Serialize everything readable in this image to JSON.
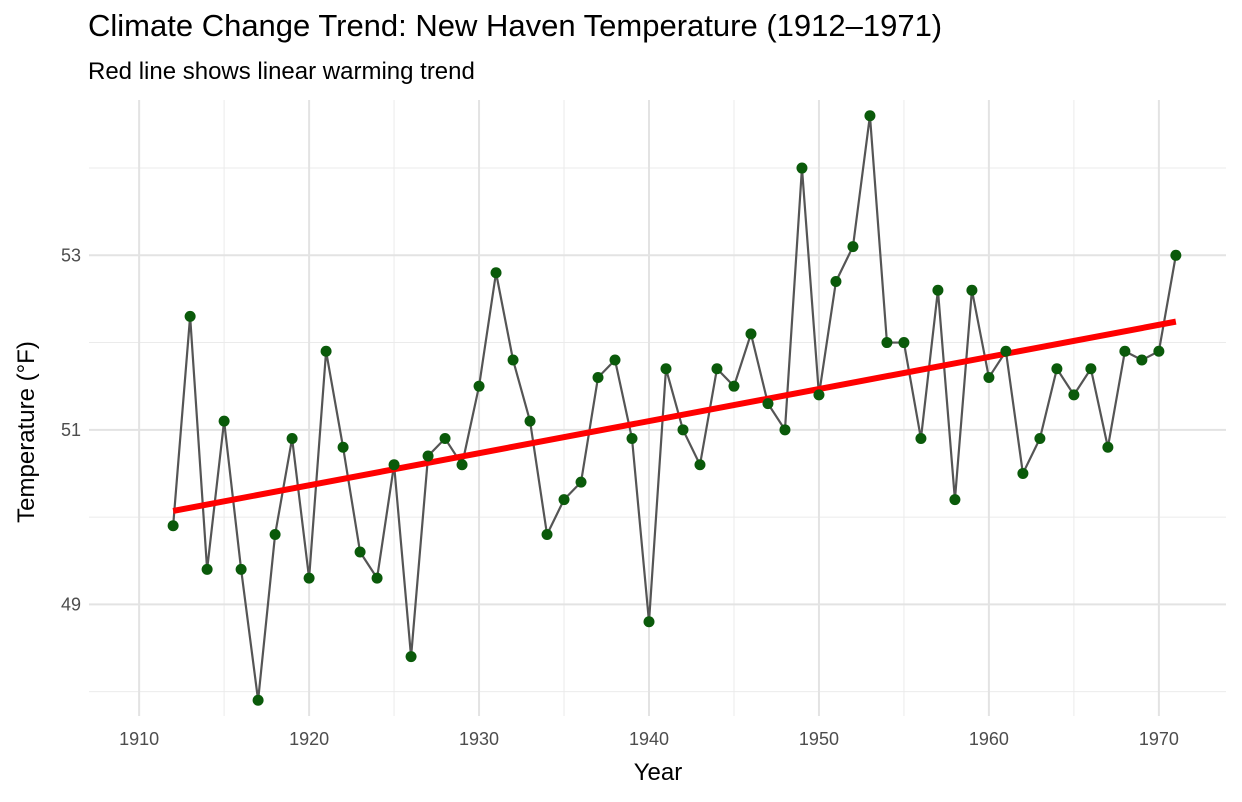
{
  "chart_data": {
    "type": "line",
    "title": "Climate Change Trend: New Haven Temperature (1912–1971)",
    "subtitle": "Red line shows linear warming trend",
    "xlabel": "Year",
    "ylabel": "Temperature (°F)",
    "xlim": [
      1907.05,
      1973.95
    ],
    "ylim": [
      47.72,
      54.78
    ],
    "x_ticks": [
      1910,
      1920,
      1930,
      1940,
      1950,
      1960,
      1970
    ],
    "y_ticks": [
      49,
      51,
      53
    ],
    "grid": true,
    "x": [
      1912,
      1913,
      1914,
      1915,
      1916,
      1917,
      1918,
      1919,
      1920,
      1921,
      1922,
      1923,
      1924,
      1925,
      1926,
      1927,
      1928,
      1929,
      1930,
      1931,
      1932,
      1933,
      1934,
      1935,
      1936,
      1937,
      1938,
      1939,
      1940,
      1941,
      1942,
      1943,
      1944,
      1945,
      1946,
      1947,
      1948,
      1949,
      1950,
      1951,
      1952,
      1953,
      1954,
      1955,
      1956,
      1957,
      1958,
      1959,
      1960,
      1961,
      1962,
      1963,
      1964,
      1965,
      1966,
      1967,
      1968,
      1969,
      1970,
      1971
    ],
    "series": [
      {
        "values": [
          49.9,
          52.3,
          49.4,
          51.1,
          49.4,
          47.9,
          49.8,
          50.9,
          49.3,
          51.9,
          50.8,
          49.6,
          49.3,
          50.6,
          48.4,
          50.7,
          50.9,
          50.6,
          51.5,
          52.8,
          51.8,
          51.1,
          49.8,
          50.2,
          50.4,
          51.6,
          51.8,
          50.9,
          48.8,
          51.7,
          51.0,
          50.6,
          51.7,
          51.5,
          52.1,
          51.3,
          51.0,
          54.0,
          51.4,
          52.7,
          53.1,
          54.6,
          52.0,
          52.0,
          50.9,
          52.6,
          50.2,
          52.6,
          51.6,
          51.9,
          50.5,
          50.9,
          51.7,
          51.4,
          51.7,
          50.8,
          51.9,
          51.8,
          51.9,
          53.0
        ],
        "line_color": "#555555",
        "point_color": "#0a5a0a"
      }
    ],
    "trend": {
      "x": [
        1912,
        1971
      ],
      "y": [
        50.07,
        52.24
      ],
      "color": "#ff0000"
    }
  }
}
